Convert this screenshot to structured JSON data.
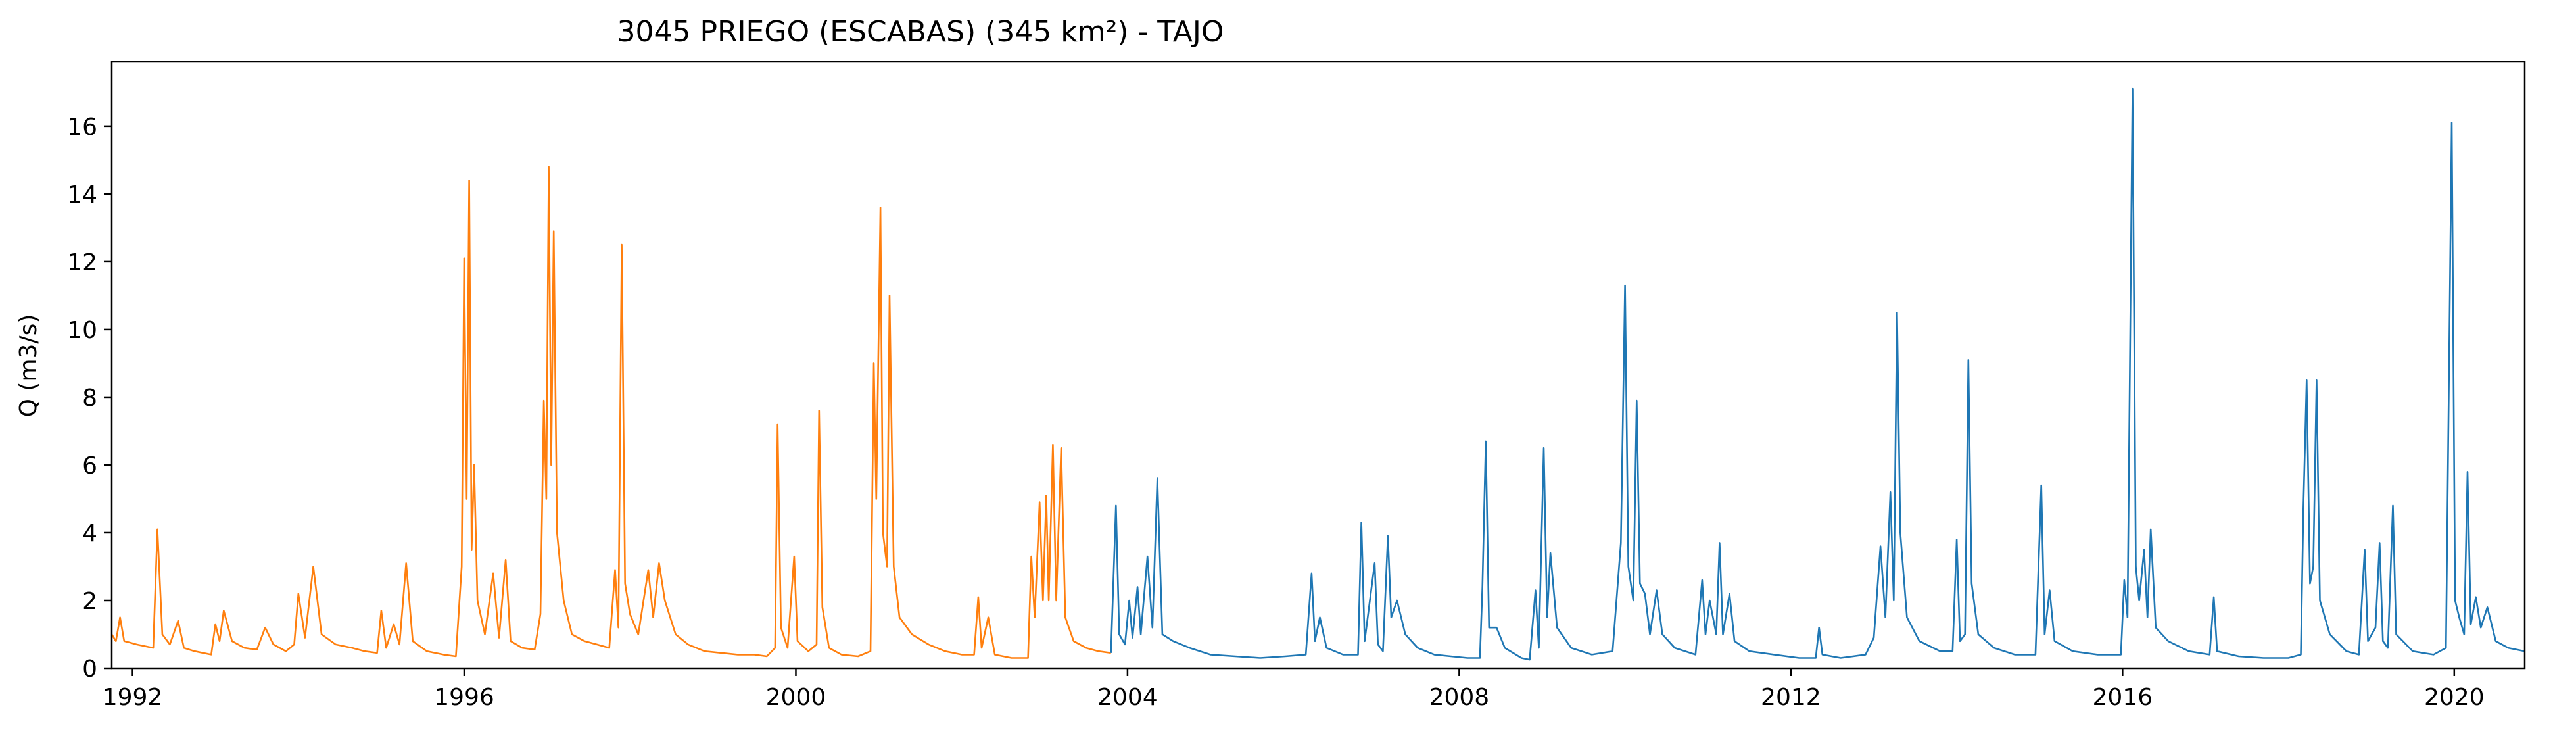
{
  "chart_data": {
    "type": "line",
    "title": "3045 PRIEGO (ESCABAS) (345 km²) - TAJO",
    "xlabel": "",
    "ylabel": "Q (m3/s)",
    "xlim": [
      1991.75,
      2020.85
    ],
    "ylim": [
      0,
      17.9
    ],
    "x_ticks": [
      1992,
      1996,
      2000,
      2004,
      2008,
      2012,
      2016,
      2020
    ],
    "y_ticks": [
      0,
      2,
      4,
      6,
      8,
      10,
      12,
      14,
      16
    ],
    "grid": false,
    "legend": "none",
    "series": [
      {
        "color": "#ff7f0e",
        "points": [
          [
            1991.75,
            1.0
          ],
          [
            1991.8,
            0.8
          ],
          [
            1991.85,
            1.5
          ],
          [
            1991.9,
            0.8
          ],
          [
            1991.98,
            0.75
          ],
          [
            1992.05,
            0.7
          ],
          [
            1992.15,
            0.65
          ],
          [
            1992.25,
            0.6
          ],
          [
            1992.3,
            4.1
          ],
          [
            1992.36,
            1.0
          ],
          [
            1992.45,
            0.7
          ],
          [
            1992.55,
            1.4
          ],
          [
            1992.62,
            0.6
          ],
          [
            1992.75,
            0.5
          ],
          [
            1992.85,
            0.45
          ],
          [
            1992.95,
            0.4
          ],
          [
            1993.0,
            1.3
          ],
          [
            1993.05,
            0.8
          ],
          [
            1993.1,
            1.7
          ],
          [
            1993.2,
            0.8
          ],
          [
            1993.35,
            0.6
          ],
          [
            1993.5,
            0.55
          ],
          [
            1993.6,
            1.2
          ],
          [
            1993.7,
            0.7
          ],
          [
            1993.85,
            0.5
          ],
          [
            1993.95,
            0.7
          ],
          [
            1994.0,
            2.2
          ],
          [
            1994.08,
            0.9
          ],
          [
            1994.18,
            3.0
          ],
          [
            1994.28,
            1.0
          ],
          [
            1994.45,
            0.7
          ],
          [
            1994.65,
            0.6
          ],
          [
            1994.8,
            0.5
          ],
          [
            1994.95,
            0.45
          ],
          [
            1995.0,
            1.7
          ],
          [
            1995.06,
            0.6
          ],
          [
            1995.15,
            1.3
          ],
          [
            1995.22,
            0.7
          ],
          [
            1995.3,
            3.1
          ],
          [
            1995.38,
            0.8
          ],
          [
            1995.55,
            0.5
          ],
          [
            1995.75,
            0.4
          ],
          [
            1995.9,
            0.35
          ],
          [
            1995.97,
            3.0
          ],
          [
            1996.0,
            12.1
          ],
          [
            1996.03,
            5.0
          ],
          [
            1996.06,
            14.4
          ],
          [
            1996.09,
            3.5
          ],
          [
            1996.12,
            6.0
          ],
          [
            1996.16,
            2.0
          ],
          [
            1996.25,
            1.0
          ],
          [
            1996.35,
            2.8
          ],
          [
            1996.42,
            0.9
          ],
          [
            1996.5,
            3.2
          ],
          [
            1996.56,
            0.8
          ],
          [
            1996.7,
            0.6
          ],
          [
            1996.85,
            0.55
          ],
          [
            1996.92,
            1.6
          ],
          [
            1996.96,
            7.9
          ],
          [
            1996.99,
            5.0
          ],
          [
            1997.02,
            14.8
          ],
          [
            1997.05,
            6.0
          ],
          [
            1997.08,
            12.9
          ],
          [
            1997.12,
            4.0
          ],
          [
            1997.2,
            2.0
          ],
          [
            1997.3,
            1.0
          ],
          [
            1997.45,
            0.8
          ],
          [
            1997.6,
            0.7
          ],
          [
            1997.75,
            0.6
          ],
          [
            1997.82,
            2.9
          ],
          [
            1997.86,
            1.2
          ],
          [
            1997.9,
            12.5
          ],
          [
            1997.94,
            2.5
          ],
          [
            1998.0,
            1.6
          ],
          [
            1998.1,
            1.0
          ],
          [
            1998.22,
            2.9
          ],
          [
            1998.28,
            1.5
          ],
          [
            1998.35,
            3.1
          ],
          [
            1998.42,
            2.0
          ],
          [
            1998.55,
            1.0
          ],
          [
            1998.7,
            0.7
          ],
          [
            1998.9,
            0.5
          ],
          [
            1999.1,
            0.45
          ],
          [
            1999.3,
            0.4
          ],
          [
            1999.5,
            0.4
          ],
          [
            1999.65,
            0.35
          ],
          [
            1999.75,
            0.6
          ],
          [
            1999.78,
            7.2
          ],
          [
            1999.82,
            1.2
          ],
          [
            1999.9,
            0.6
          ],
          [
            1999.98,
            3.3
          ],
          [
            2000.02,
            0.8
          ],
          [
            2000.15,
            0.5
          ],
          [
            2000.25,
            0.7
          ],
          [
            2000.28,
            7.6
          ],
          [
            2000.32,
            1.8
          ],
          [
            2000.4,
            0.6
          ],
          [
            2000.55,
            0.4
          ],
          [
            2000.75,
            0.35
          ],
          [
            2000.9,
            0.5
          ],
          [
            2000.94,
            9.0
          ],
          [
            2000.97,
            5.0
          ],
          [
            2001.02,
            13.6
          ],
          [
            2001.05,
            4.0
          ],
          [
            2001.1,
            3.0
          ],
          [
            2001.13,
            11.0
          ],
          [
            2001.18,
            3.0
          ],
          [
            2001.25,
            1.5
          ],
          [
            2001.4,
            1.0
          ],
          [
            2001.6,
            0.7
          ],
          [
            2001.8,
            0.5
          ],
          [
            2002.0,
            0.4
          ],
          [
            2002.15,
            0.4
          ],
          [
            2002.2,
            2.1
          ],
          [
            2002.24,
            0.6
          ],
          [
            2002.32,
            1.5
          ],
          [
            2002.4,
            0.4
          ],
          [
            2002.6,
            0.3
          ],
          [
            2002.8,
            0.3
          ],
          [
            2002.84,
            3.3
          ],
          [
            2002.88,
            1.5
          ],
          [
            2002.94,
            4.9
          ],
          [
            2002.98,
            2.0
          ],
          [
            2003.02,
            5.1
          ],
          [
            2003.05,
            2.0
          ],
          [
            2003.1,
            6.6
          ],
          [
            2003.14,
            2.0
          ],
          [
            2003.2,
            6.5
          ],
          [
            2003.25,
            1.5
          ],
          [
            2003.35,
            0.8
          ],
          [
            2003.5,
            0.6
          ],
          [
            2003.65,
            0.5
          ],
          [
            2003.8,
            0.45
          ]
        ]
      },
      {
        "color": "#1f77b4",
        "points": [
          [
            2003.8,
            0.45
          ],
          [
            2003.86,
            4.8
          ],
          [
            2003.9,
            1.0
          ],
          [
            2003.97,
            0.7
          ],
          [
            2004.02,
            2.0
          ],
          [
            2004.06,
            0.9
          ],
          [
            2004.12,
            2.4
          ],
          [
            2004.16,
            1.0
          ],
          [
            2004.24,
            3.3
          ],
          [
            2004.3,
            1.2
          ],
          [
            2004.36,
            5.6
          ],
          [
            2004.42,
            1.0
          ],
          [
            2004.55,
            0.8
          ],
          [
            2004.75,
            0.6
          ],
          [
            2005.0,
            0.4
          ],
          [
            2005.3,
            0.35
          ],
          [
            2005.6,
            0.3
          ],
          [
            2005.9,
            0.35
          ],
          [
            2006.15,
            0.4
          ],
          [
            2006.22,
            2.8
          ],
          [
            2006.26,
            0.8
          ],
          [
            2006.32,
            1.5
          ],
          [
            2006.4,
            0.6
          ],
          [
            2006.6,
            0.4
          ],
          [
            2006.78,
            0.4
          ],
          [
            2006.82,
            4.3
          ],
          [
            2006.86,
            0.8
          ],
          [
            2006.98,
            3.1
          ],
          [
            2007.02,
            0.7
          ],
          [
            2007.08,
            0.5
          ],
          [
            2007.14,
            3.9
          ],
          [
            2007.18,
            1.5
          ],
          [
            2007.25,
            2.0
          ],
          [
            2007.35,
            1.0
          ],
          [
            2007.5,
            0.6
          ],
          [
            2007.7,
            0.4
          ],
          [
            2007.9,
            0.35
          ],
          [
            2008.1,
            0.3
          ],
          [
            2008.25,
            0.3
          ],
          [
            2008.28,
            2.4
          ],
          [
            2008.32,
            6.7
          ],
          [
            2008.36,
            1.2
          ],
          [
            2008.45,
            1.2
          ],
          [
            2008.55,
            0.6
          ],
          [
            2008.75,
            0.3
          ],
          [
            2008.85,
            0.25
          ],
          [
            2008.92,
            2.3
          ],
          [
            2008.96,
            0.6
          ],
          [
            2009.02,
            6.5
          ],
          [
            2009.06,
            1.5
          ],
          [
            2009.1,
            3.4
          ],
          [
            2009.18,
            1.2
          ],
          [
            2009.35,
            0.6
          ],
          [
            2009.6,
            0.4
          ],
          [
            2009.85,
            0.5
          ],
          [
            2009.95,
            3.7
          ],
          [
            2010.0,
            11.3
          ],
          [
            2010.04,
            3.0
          ],
          [
            2010.1,
            2.0
          ],
          [
            2010.14,
            7.9
          ],
          [
            2010.18,
            2.5
          ],
          [
            2010.24,
            2.2
          ],
          [
            2010.3,
            1.0
          ],
          [
            2010.38,
            2.3
          ],
          [
            2010.45,
            1.0
          ],
          [
            2010.6,
            0.6
          ],
          [
            2010.85,
            0.4
          ],
          [
            2010.93,
            2.6
          ],
          [
            2010.97,
            1.0
          ],
          [
            2011.02,
            2.0
          ],
          [
            2011.1,
            1.0
          ],
          [
            2011.14,
            3.7
          ],
          [
            2011.18,
            1.0
          ],
          [
            2011.26,
            2.2
          ],
          [
            2011.32,
            0.8
          ],
          [
            2011.5,
            0.5
          ],
          [
            2011.8,
            0.4
          ],
          [
            2012.1,
            0.3
          ],
          [
            2012.3,
            0.3
          ],
          [
            2012.34,
            1.2
          ],
          [
            2012.38,
            0.4
          ],
          [
            2012.6,
            0.3
          ],
          [
            2012.9,
            0.4
          ],
          [
            2013.0,
            0.9
          ],
          [
            2013.08,
            3.6
          ],
          [
            2013.14,
            1.5
          ],
          [
            2013.2,
            5.2
          ],
          [
            2013.24,
            2.0
          ],
          [
            2013.28,
            10.5
          ],
          [
            2013.32,
            4.0
          ],
          [
            2013.4,
            1.5
          ],
          [
            2013.55,
            0.8
          ],
          [
            2013.8,
            0.5
          ],
          [
            2013.95,
            0.5
          ],
          [
            2014.0,
            3.8
          ],
          [
            2014.04,
            0.8
          ],
          [
            2014.1,
            1.0
          ],
          [
            2014.14,
            9.1
          ],
          [
            2014.18,
            2.5
          ],
          [
            2014.26,
            1.0
          ],
          [
            2014.45,
            0.6
          ],
          [
            2014.7,
            0.4
          ],
          [
            2014.95,
            0.4
          ],
          [
            2015.02,
            5.4
          ],
          [
            2015.06,
            1.0
          ],
          [
            2015.12,
            2.3
          ],
          [
            2015.18,
            0.8
          ],
          [
            2015.4,
            0.5
          ],
          [
            2015.7,
            0.4
          ],
          [
            2015.98,
            0.4
          ],
          [
            2016.02,
            2.6
          ],
          [
            2016.06,
            1.5
          ],
          [
            2016.12,
            17.1
          ],
          [
            2016.16,
            3.0
          ],
          [
            2016.2,
            2.0
          ],
          [
            2016.26,
            3.5
          ],
          [
            2016.3,
            1.5
          ],
          [
            2016.34,
            4.1
          ],
          [
            2016.4,
            1.2
          ],
          [
            2016.55,
            0.8
          ],
          [
            2016.8,
            0.5
          ],
          [
            2017.05,
            0.4
          ],
          [
            2017.1,
            2.1
          ],
          [
            2017.14,
            0.5
          ],
          [
            2017.4,
            0.35
          ],
          [
            2017.7,
            0.3
          ],
          [
            2018.0,
            0.3
          ],
          [
            2018.15,
            0.4
          ],
          [
            2018.18,
            4.7
          ],
          [
            2018.22,
            8.5
          ],
          [
            2018.26,
            2.5
          ],
          [
            2018.3,
            3.0
          ],
          [
            2018.34,
            8.5
          ],
          [
            2018.38,
            2.0
          ],
          [
            2018.5,
            1.0
          ],
          [
            2018.7,
            0.5
          ],
          [
            2018.85,
            0.4
          ],
          [
            2018.92,
            3.5
          ],
          [
            2018.96,
            0.8
          ],
          [
            2019.05,
            1.2
          ],
          [
            2019.1,
            3.7
          ],
          [
            2019.14,
            0.8
          ],
          [
            2019.2,
            0.6
          ],
          [
            2019.26,
            4.8
          ],
          [
            2019.3,
            1.0
          ],
          [
            2019.5,
            0.5
          ],
          [
            2019.75,
            0.4
          ],
          [
            2019.9,
            0.6
          ],
          [
            2019.97,
            16.1
          ],
          [
            2020.01,
            2.0
          ],
          [
            2020.06,
            1.5
          ],
          [
            2020.12,
            1.0
          ],
          [
            2020.16,
            5.8
          ],
          [
            2020.2,
            1.3
          ],
          [
            2020.26,
            2.1
          ],
          [
            2020.32,
            1.2
          ],
          [
            2020.4,
            1.8
          ],
          [
            2020.5,
            0.8
          ],
          [
            2020.65,
            0.6
          ],
          [
            2020.85,
            0.5
          ]
        ]
      }
    ]
  }
}
